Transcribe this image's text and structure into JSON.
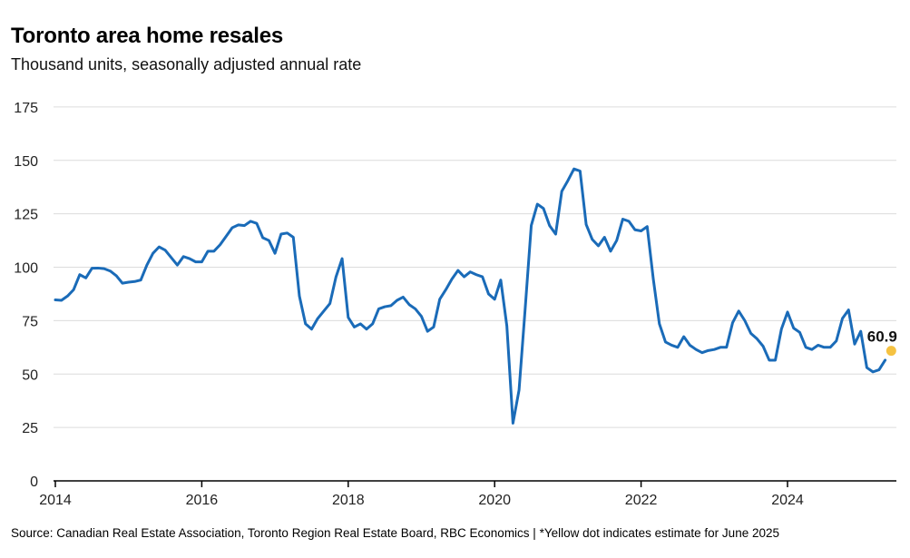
{
  "chart_data": {
    "type": "line",
    "title": "Toronto area home resales",
    "subtitle": "Thousand units, seasonally adjusted annual rate",
    "source": "Source: Canadian Real Estate Association, Toronto Region Real Estate Board, RBC Economics | *Yellow dot indicates estimate for June 2025",
    "ylim": [
      0,
      175
    ],
    "y_ticks": [
      0,
      25,
      50,
      75,
      100,
      125,
      150,
      175
    ],
    "x_ticks": [
      "2014",
      "2016",
      "2018",
      "2020",
      "2022",
      "2024"
    ],
    "grid": true,
    "series": [
      {
        "color": "#1a6bb8",
        "x_start": "2014-01",
        "frequency": "monthly",
        "values": [
          84.7,
          84.5,
          86.5,
          89.5,
          96.5,
          95.0,
          99.5,
          99.6,
          99.3,
          98.2,
          96.0,
          92.5,
          93.0,
          93.3,
          94.0,
          101.0,
          106.5,
          109.5,
          108.0,
          104.5,
          101.0,
          105.0,
          104.0,
          102.5,
          102.5,
          107.5,
          107.5,
          110.5,
          114.5,
          118.5,
          119.8,
          119.5,
          121.5,
          120.5,
          113.8,
          112.5,
          106.5,
          115.5,
          116.0,
          114.0,
          86.5,
          73.5,
          71.0,
          76.0,
          79.5,
          83.0,
          95.5,
          104.0,
          76.5,
          72.0,
          73.5,
          71.0,
          73.5,
          80.5,
          81.5,
          82.0,
          84.5,
          86.0,
          82.5,
          80.5,
          77.0,
          70.0,
          72.0,
          85.0,
          89.5,
          94.5,
          98.5,
          95.5,
          97.8,
          96.5,
          95.5,
          87.5,
          85.0,
          94.0,
          72.5,
          27.0,
          42.5,
          80.5,
          119.5,
          129.5,
          127.5,
          119.5,
          115.5,
          135.5,
          140.5,
          146.0,
          145.0,
          120.0,
          113.0,
          110.0,
          114.0,
          107.5,
          112.5,
          122.5,
          121.5,
          117.5,
          117.0,
          119.0,
          94.5,
          73.5,
          65.0,
          63.5,
          62.5,
          67.5,
          63.5,
          61.5,
          60.0,
          61.0,
          61.5,
          62.5,
          62.5,
          74.0,
          79.5,
          75.0,
          69.0,
          66.5,
          63.0,
          56.5,
          56.5,
          71.0,
          79.0,
          71.5,
          69.5,
          62.5,
          61.5,
          63.5,
          62.5,
          62.5,
          65.5,
          76.0,
          80.0,
          64.0,
          70.0,
          53.0,
          51.0,
          52.0,
          56.5
        ]
      }
    ],
    "estimate": {
      "label": "60.9",
      "x": "2025-06",
      "y": 60.9,
      "color": "#f5c242"
    }
  }
}
